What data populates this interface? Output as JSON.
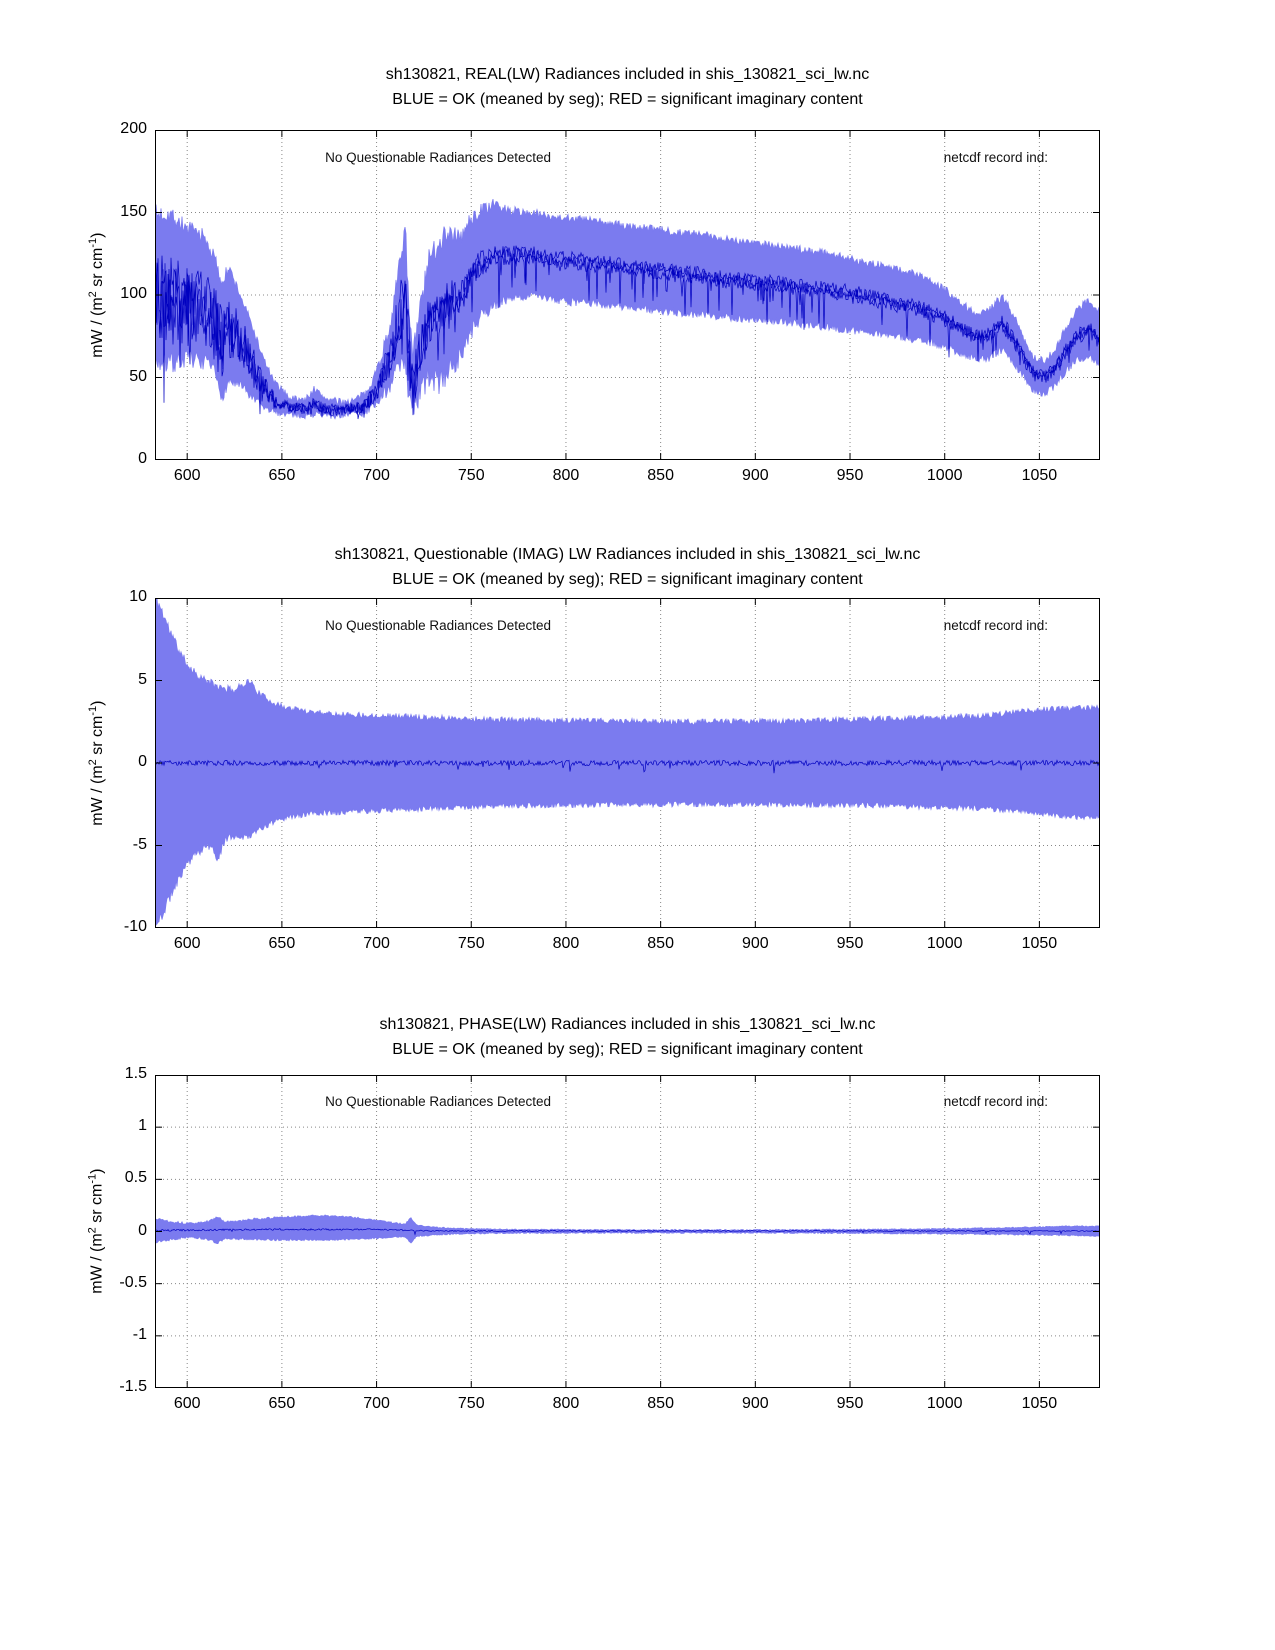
{
  "page": {
    "background": "#ffffff"
  },
  "chart_data": [
    {
      "type": "area",
      "title": "sh130821, REAL(LW) Radiances included in shis_130821_sci_lw.nc",
      "subtitle": "BLUE = OK (meaned by seg); RED = significant imaginary content",
      "ylabel": {
        "pre": "mW / (m",
        "sup1": "2",
        "mid": " sr cm",
        "sup2": "-1",
        "post": ")"
      },
      "annotations": {
        "left": "No Questionable Radiances Detected",
        "right": "netcdf record ind:"
      },
      "colors": {
        "band": "#7b7bef",
        "line": "#0000c0",
        "grid": "#888888",
        "axis": "#000000"
      },
      "xlim": [
        583,
        1082
      ],
      "ylim": [
        0,
        200
      ],
      "xticks": [
        600,
        650,
        700,
        750,
        800,
        850,
        900,
        950,
        1000,
        1050
      ],
      "xtick_labels": [
        "600",
        "650",
        "700",
        "750",
        "800",
        "850",
        "900",
        "950",
        "1000",
        "1050"
      ],
      "yticks": [
        0,
        50,
        100,
        150,
        200
      ],
      "ytick_labels": [
        "0",
        "50",
        "100",
        "150",
        "200"
      ],
      "grid": true,
      "envelope": {
        "x": [
          583,
          590,
          600,
          608,
          614,
          618,
          622,
          628,
          634,
          640,
          646,
          654,
          662,
          667,
          672,
          680,
          688,
          694,
          700,
          706,
          711,
          715,
          719,
          723,
          728,
          733,
          738,
          744,
          750,
          756,
          762,
          770,
          780,
          790,
          800,
          815,
          830,
          845,
          860,
          875,
          890,
          905,
          920,
          935,
          950,
          962,
          974,
          986,
          998,
          1008,
          1016,
          1024,
          1030,
          1036,
          1042,
          1048,
          1053,
          1058,
          1064,
          1070,
          1076,
          1082
        ],
        "lower": [
          60,
          58,
          62,
          60,
          55,
          38,
          48,
          45,
          38,
          32,
          29,
          28,
          27,
          28,
          27,
          27,
          28,
          29,
          34,
          44,
          54,
          60,
          24,
          40,
          52,
          46,
          55,
          62,
          78,
          88,
          94,
          98,
          100,
          98,
          96,
          95,
          93,
          91,
          89,
          88,
          86,
          85,
          83,
          81,
          79,
          77,
          75,
          73,
          70,
          65,
          62,
          62,
          67,
          60,
          50,
          41,
          41,
          45,
          54,
          61,
          63,
          58
        ],
        "upper": [
          148,
          150,
          140,
          136,
          124,
          108,
          116,
          100,
          82,
          62,
          47,
          38,
          36,
          43,
          38,
          35,
          36,
          40,
          54,
          76,
          108,
          142,
          58,
          92,
          120,
          134,
          139,
          133,
          146,
          152,
          155,
          151,
          150,
          148,
          147,
          145,
          142,
          140,
          138,
          136,
          133,
          131,
          128,
          126,
          122,
          119,
          116,
          112,
          105,
          96,
          89,
          91,
          99,
          89,
          72,
          61,
          60,
          66,
          80,
          92,
          97,
          90
        ]
      },
      "mean": {
        "y": [
          100,
          98,
          95,
          92,
          85,
          70,
          80,
          72,
          58,
          45,
          36,
          32,
          31,
          34,
          31,
          30,
          31,
          33,
          42,
          58,
          80,
          100,
          40,
          65,
          85,
          90,
          97,
          97,
          112,
          120,
          124,
          124,
          125,
          122,
          121,
          119,
          117,
          115,
          113,
          111,
          109,
          107,
          105,
          103,
          101,
          98,
          95,
          92,
          87,
          80,
          75,
          76,
          83,
          74,
          61,
          51,
          50,
          55,
          66,
          75,
          79,
          73
        ]
      },
      "strands": [
        -0.045,
        0,
        0.045
      ],
      "env_noise": {
        "x": [
          583,
          620,
          645,
          695,
          710,
          718,
          726,
          745,
          765,
          800,
          1082
        ],
        "amp": [
          7,
          4,
          2,
          2.5,
          6,
          9,
          10,
          6,
          3,
          2.5,
          2.5
        ]
      },
      "mean_noise": {
        "x": [
          583,
          618,
          632,
          650,
          695,
          705,
          715,
          722,
          730,
          745,
          760,
          790,
          1082
        ],
        "amp": [
          26,
          20,
          12,
          3,
          4,
          10,
          20,
          14,
          12,
          8,
          4,
          3.5,
          3.5
        ]
      },
      "spikes": {
        "prob": 0.05,
        "amp": 28,
        "band_ref": 50
      },
      "seed": 7
    },
    {
      "type": "area",
      "title": "sh130821, Questionable (IMAG) LW Radiances included in shis_130821_sci_lw.nc",
      "subtitle": "BLUE = OK (meaned by seg); RED = significant imaginary content",
      "ylabel": {
        "pre": "mW / (m",
        "sup1": "2",
        "mid": " sr cm",
        "sup2": "-1",
        "post": ")"
      },
      "annotations": {
        "left": "No Questionable Radiances Detected",
        "right": "netcdf record ind:"
      },
      "colors": {
        "band": "#7b7bef",
        "line": "#0000c0",
        "grid": "#888888",
        "axis": "#000000"
      },
      "xlim": [
        583,
        1082
      ],
      "ylim": [
        -10,
        10
      ],
      "xticks": [
        600,
        650,
        700,
        750,
        800,
        850,
        900,
        950,
        1000,
        1050
      ],
      "xtick_labels": [
        "600",
        "650",
        "700",
        "750",
        "800",
        "850",
        "900",
        "950",
        "1000",
        "1050"
      ],
      "yticks": [
        -10,
        -5,
        0,
        5,
        10
      ],
      "ytick_labels": [
        "-10",
        "-5",
        "0",
        "5",
        "10"
      ],
      "grid": true,
      "envelope": {
        "x": [
          583,
          586,
          590,
          594,
          598,
          603,
          608,
          613,
          616,
          620,
          625,
          630,
          633,
          637,
          642,
          648,
          655,
          663,
          672,
          682,
          694,
          708,
          724,
          742,
          762,
          784,
          808,
          834,
          860,
          886,
          912,
          936,
          956,
          974,
          992,
          1008,
          1022,
          1034,
          1044,
          1054,
          1064,
          1074,
          1082
        ],
        "lower": [
          -10,
          -9.4,
          -8.3,
          -7.3,
          -6.4,
          -5.7,
          -5.2,
          -5.0,
          -5.9,
          -4.6,
          -4.4,
          -4.5,
          -4.4,
          -4.1,
          -3.8,
          -3.4,
          -3.25,
          -3.1,
          -3.0,
          -2.95,
          -2.9,
          -2.82,
          -2.75,
          -2.68,
          -2.6,
          -2.55,
          -2.52,
          -2.5,
          -2.48,
          -2.48,
          -2.5,
          -2.52,
          -2.55,
          -2.6,
          -2.65,
          -2.7,
          -2.75,
          -2.85,
          -2.95,
          -3.1,
          -3.2,
          -3.3,
          -3.3
        ],
        "upper": [
          10,
          9.4,
          8.2,
          7.2,
          6.3,
          5.6,
          5.1,
          4.8,
          4.6,
          4.5,
          4.4,
          4.8,
          5.0,
          4.3,
          3.9,
          3.5,
          3.3,
          3.15,
          3.05,
          2.95,
          2.9,
          2.85,
          2.78,
          2.7,
          2.62,
          2.58,
          2.55,
          2.52,
          2.5,
          2.5,
          2.52,
          2.58,
          2.65,
          2.7,
          2.75,
          2.8,
          2.85,
          3.05,
          3.15,
          3.25,
          3.3,
          3.35,
          3.35
        ]
      },
      "mean": {
        "x": [
          583,
          1082
        ],
        "y": [
          0,
          0
        ]
      },
      "strands": [
        0
      ],
      "env_noise": {
        "x": [
          583,
          600,
          640,
          1082
        ],
        "amp": [
          0.45,
          0.3,
          0.18,
          0.18
        ]
      },
      "mean_noise": {
        "x": [
          583,
          1082
        ],
        "amp": [
          0.16,
          0.16
        ]
      },
      "spikes": {
        "prob": 0.015,
        "amp": 0.6,
        "band_ref": 5
      },
      "seed": 11
    },
    {
      "type": "area",
      "title": "sh130821, PHASE(LW) Radiances included in shis_130821_sci_lw.nc",
      "subtitle": "BLUE = OK (meaned by seg); RED = significant imaginary content",
      "ylabel": {
        "pre": "mW / (m",
        "sup1": "2",
        "mid": " sr cm",
        "sup2": "-1",
        "post": ")"
      },
      "annotations": {
        "left": "No Questionable Radiances Detected",
        "right": "netcdf record ind:"
      },
      "colors": {
        "band": "#7b7bef",
        "line": "#0000c0",
        "grid": "#888888",
        "axis": "#000000"
      },
      "xlim": [
        583,
        1082
      ],
      "ylim": [
        -1.5,
        1.5
      ],
      "xticks": [
        600,
        650,
        700,
        750,
        800,
        850,
        900,
        950,
        1000,
        1050
      ],
      "xtick_labels": [
        "600",
        "650",
        "700",
        "750",
        "800",
        "850",
        "900",
        "950",
        "1000",
        "1050"
      ],
      "yticks": [
        -1.5,
        -1,
        -0.5,
        0,
        0.5,
        1,
        1.5
      ],
      "ytick_labels": [
        "-1.5",
        "-1",
        "-0.5",
        "0",
        "0.5",
        "1",
        "1.5"
      ],
      "grid": true,
      "envelope": {
        "x": [
          583,
          590,
          598,
          606,
          612,
          616,
          620,
          628,
          636,
          645,
          655,
          665,
          675,
          685,
          695,
          703,
          710,
          715,
          718,
          721,
          726,
          732,
          740,
          750,
          765,
          785,
          815,
          850,
          885,
          920,
          950,
          980,
          1005,
          1025,
          1045,
          1062,
          1075,
          1082
        ],
        "lower": [
          -0.1,
          -0.08,
          -0.06,
          -0.06,
          -0.08,
          -0.11,
          -0.07,
          -0.07,
          -0.075,
          -0.08,
          -0.08,
          -0.08,
          -0.08,
          -0.075,
          -0.07,
          -0.06,
          -0.05,
          -0.05,
          -0.11,
          -0.045,
          -0.04,
          -0.03,
          -0.025,
          -0.02,
          -0.016,
          -0.014,
          -0.012,
          -0.012,
          -0.012,
          -0.013,
          -0.015,
          -0.018,
          -0.022,
          -0.026,
          -0.03,
          -0.036,
          -0.04,
          -0.04
        ],
        "upper": [
          0.13,
          0.1,
          0.08,
          0.08,
          0.1,
          0.14,
          0.09,
          0.1,
          0.12,
          0.13,
          0.14,
          0.15,
          0.15,
          0.14,
          0.12,
          0.1,
          0.08,
          0.07,
          0.13,
          0.06,
          0.05,
          0.04,
          0.03,
          0.025,
          0.02,
          0.018,
          0.016,
          0.015,
          0.015,
          0.016,
          0.018,
          0.022,
          0.028,
          0.032,
          0.04,
          0.048,
          0.052,
          0.05
        ]
      },
      "mean": {
        "x": [
          583,
          640,
          700,
          730,
          1082
        ],
        "y": [
          0.01,
          0.02,
          0.02,
          0.005,
          0.005
        ]
      },
      "strands": [
        0
      ],
      "env_noise": {
        "x": [
          583,
          730,
          1082
        ],
        "amp": [
          0.012,
          0.006,
          0.006
        ]
      },
      "mean_noise": {
        "x": [
          583,
          730,
          1082
        ],
        "amp": [
          0.01,
          0.006,
          0.004
        ]
      },
      "spikes": {
        "prob": 0.01,
        "amp": 0.02,
        "band_ref": 0.05
      },
      "seed": 13
    }
  ]
}
